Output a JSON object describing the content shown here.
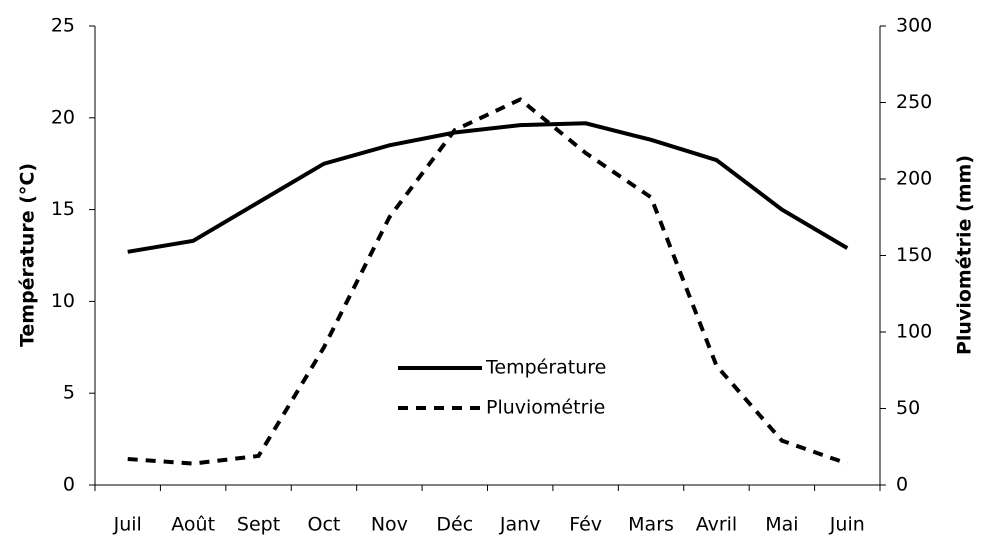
{
  "chart_data": {
    "type": "line",
    "categories": [
      "Juil",
      "Août",
      "Sept",
      "Oct",
      "Nov",
      "Déc",
      "Janv",
      "Fév",
      "Mars",
      "Avril",
      "Mai",
      "Juin"
    ],
    "series": [
      {
        "name": "Température",
        "color": "#000000",
        "style": "solid",
        "values": [
          12.7,
          13.3,
          15.4,
          17.5,
          18.5,
          19.2,
          19.6,
          19.7,
          18.8,
          17.7,
          15.0,
          12.9
        ]
      },
      {
        "name": "Pluviométrie",
        "color": "#000000",
        "style": "dashed",
        "axis": "y2",
        "values": [
          17,
          14,
          19,
          90,
          175,
          232,
          252,
          217,
          188,
          78,
          29,
          14
        ]
      }
    ],
    "ylabel": "Température (°C)",
    "y2label": "Pluviométrie (mm)",
    "ylim": [
      0,
      25
    ],
    "yticks": [
      0,
      5,
      10,
      15,
      20,
      25
    ],
    "y2lim": [
      0,
      300
    ],
    "y2ticks": [
      0,
      50,
      100,
      150,
      200,
      250,
      300
    ],
    "grid": false
  }
}
